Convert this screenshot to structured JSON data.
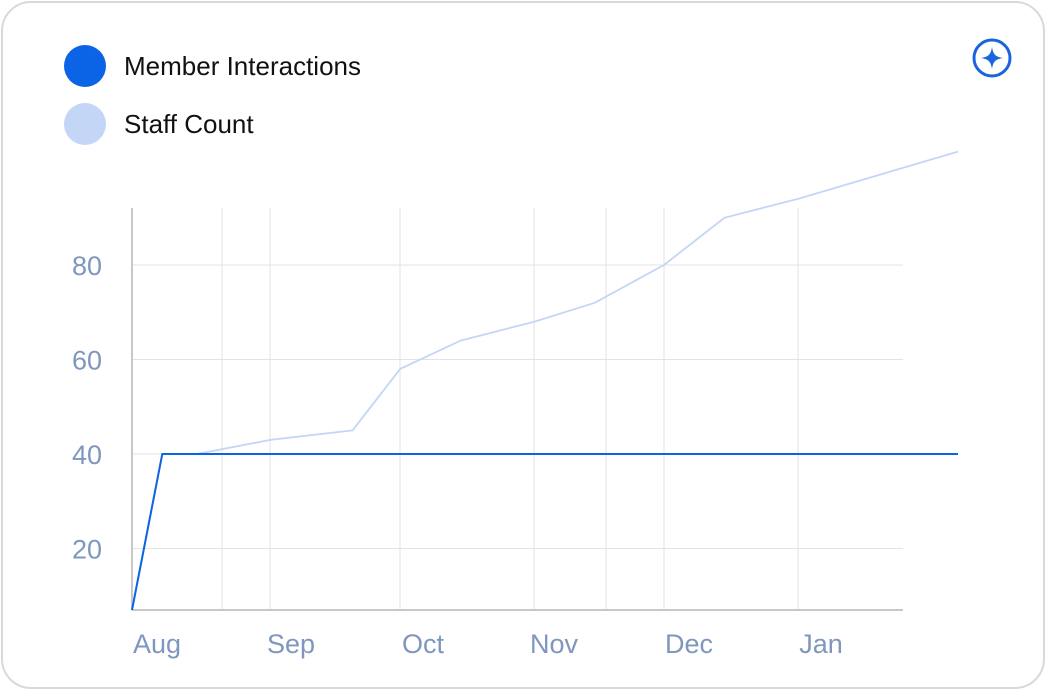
{
  "legend": [
    {
      "label": "Member Interactions",
      "color": "#0b63e5"
    },
    {
      "label": "Staff Count",
      "color": "#c4d6f6"
    }
  ],
  "toolbar": {
    "icon": "sparkle-icon"
  },
  "chart_data": {
    "type": "line",
    "x": [
      "Jul 31",
      "Aug 7",
      "Aug 15",
      "Sep 1",
      "Sep 20",
      "Oct 1",
      "Oct 15",
      "Nov 1",
      "Nov 15",
      "Dec 1",
      "Dec 15",
      "Jan 1",
      "Feb 7"
    ],
    "x_ticks": [
      "Aug",
      "Sep",
      "Oct",
      "Nov",
      "Dec",
      "Jan"
    ],
    "y_ticks": [
      20,
      40,
      60,
      80
    ],
    "ylim": [
      7,
      92
    ],
    "series": [
      {
        "name": "Member Interactions",
        "color": "#0b63e5",
        "values": [
          7,
          40,
          40,
          40,
          40,
          40,
          40,
          40,
          40,
          40,
          40,
          40,
          40
        ]
      },
      {
        "name": "Staff Count",
        "color": "#c4d6f6",
        "values": [
          7,
          40,
          40,
          43,
          45,
          58,
          64,
          68,
          72,
          80,
          90,
          94,
          104
        ]
      }
    ],
    "grid": true,
    "legend_position": "top-left"
  }
}
